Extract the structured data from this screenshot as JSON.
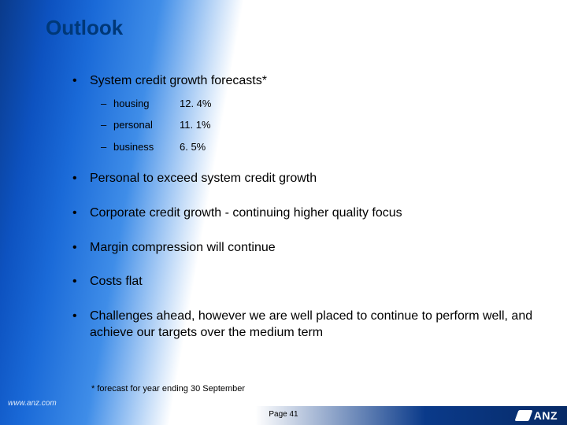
{
  "title": "Outlook",
  "bullets": {
    "b0": "System credit growth forecasts*",
    "b1": "Personal to exceed system credit growth",
    "b2": "Corporate credit growth - continuing higher quality focus",
    "b3": "Margin compression will continue",
    "b4": "Costs flat",
    "b5": "Challenges ahead, however we are well placed to continue to perform well, and achieve our targets over the medium term"
  },
  "forecasts": [
    {
      "label": "housing",
      "value": "12. 4%"
    },
    {
      "label": "personal",
      "value": "11. 1%"
    },
    {
      "label": "business",
      "value": "6. 5%"
    }
  ],
  "footnote": "* forecast for year ending 30 September",
  "page": "Page 41",
  "url": "www.anz.com",
  "logo_text": "ANZ",
  "colors": {
    "title": "#003878",
    "text": "#000000",
    "bg_white": "#ffffff",
    "bg_deep": "#072a66",
    "bg_mid": "#0d52c0",
    "bg_light": "#3f8de8"
  },
  "fonts": {
    "title_size_pt": 20,
    "bullet_size_pt": 12,
    "sub_size_pt": 10,
    "footnote_size_pt": 8
  }
}
